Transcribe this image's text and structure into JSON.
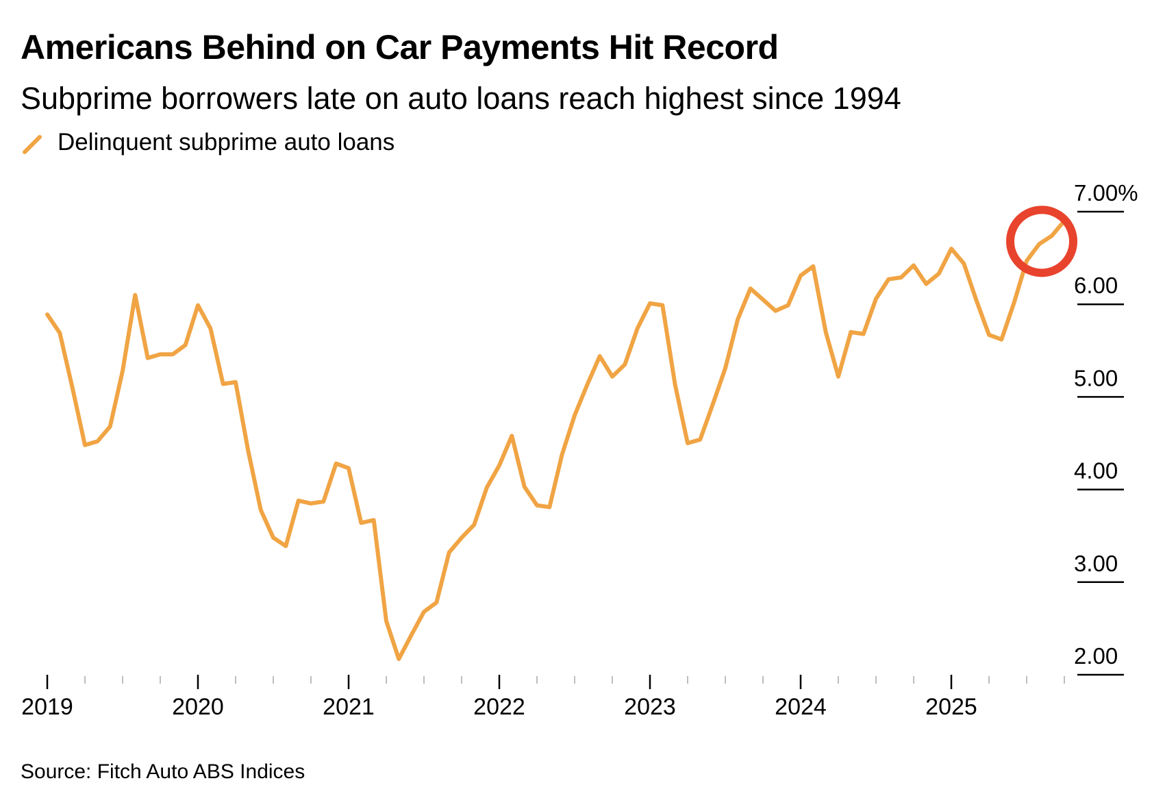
{
  "chart_data": {
    "type": "line",
    "title": "Americans Behind on Car Payments Hit Record",
    "subtitle": "Subprime borrowers late on auto loans reach highest since 1994",
    "source": "Source: Fitch Auto ABS Indices",
    "xlabel": "",
    "ylabel": "",
    "ylim": [
      2.0,
      7.0
    ],
    "y_ticks": [
      {
        "value": 7,
        "label": "7.00%"
      },
      {
        "value": 6,
        "label": "6.00"
      },
      {
        "value": 5,
        "label": "5.00"
      },
      {
        "value": 4,
        "label": "4.00"
      },
      {
        "value": 3,
        "label": "3.00"
      },
      {
        "value": 2,
        "label": "2.00"
      }
    ],
    "x_ticks": [
      "2019",
      "2020",
      "2021",
      "2022",
      "2023",
      "2024",
      "2025"
    ],
    "x_start": "2019-01",
    "x_frequency": "monthly",
    "legend": "top-left",
    "grid": false,
    "series": [
      {
        "name": "Delinquent subprime auto loans",
        "color": "#f0a444",
        "values": [
          5.89,
          5.69,
          5.1,
          4.48,
          4.52,
          4.68,
          5.28,
          6.1,
          5.42,
          5.46,
          5.46,
          5.56,
          5.99,
          5.74,
          5.14,
          5.16,
          4.42,
          3.78,
          3.48,
          3.39,
          3.88,
          3.85,
          3.87,
          4.28,
          4.23,
          3.64,
          3.67,
          2.58,
          2.17,
          2.43,
          2.68,
          2.78,
          3.32,
          3.48,
          3.62,
          4.02,
          4.26,
          4.58,
          4.03,
          3.83,
          3.81,
          4.38,
          4.8,
          5.13,
          5.44,
          5.22,
          5.35,
          5.74,
          6.01,
          5.99,
          5.13,
          4.5,
          4.54,
          4.92,
          5.31,
          5.84,
          6.17,
          6.05,
          5.93,
          5.99,
          6.31,
          6.41,
          5.7,
          5.22,
          5.7,
          5.68,
          6.06,
          6.27,
          6.29,
          6.42,
          6.22,
          6.33,
          6.6,
          6.44,
          6.04,
          5.67,
          5.62,
          6.02,
          6.47,
          6.65,
          6.74,
          6.9
        ]
      }
    ],
    "annotations": [
      {
        "type": "circle",
        "color": "#e8432d",
        "target": "latest values (record high)"
      }
    ]
  }
}
